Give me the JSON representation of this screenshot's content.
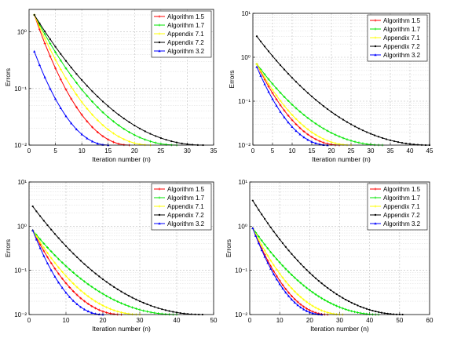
{
  "colors": {
    "Algorithm 1.5": "#ff0000",
    "Algorithm 1.7": "#00e600",
    "Appendix 7.1": "#ffff00",
    "Appendix 7.2": "#000000",
    "Algorithm 3.2": "#0000ff"
  },
  "chart_data": [
    {
      "type": "line",
      "xlabel": "Iteration number (n)",
      "ylabel": "Errors",
      "xlim": [
        0,
        35
      ],
      "xticks": [
        0,
        5,
        10,
        15,
        20,
        25,
        30,
        35
      ],
      "yscale": "log",
      "ylim": [
        0.01,
        2.5
      ],
      "yticks": [
        0.01,
        0.1,
        1
      ],
      "ytick_labels": [
        "10⁻²",
        "10⁻¹",
        "10⁰"
      ],
      "grid": true,
      "legend": "top-right",
      "series": [
        {
          "name": "Algorithm 1.5",
          "y0": 2.0,
          "n_end": 19
        },
        {
          "name": "Algorithm 1.7",
          "y0": 2.0,
          "n_end": 28
        },
        {
          "name": "Appendix 7.1",
          "y0": 2.0,
          "n_end": 23
        },
        {
          "name": "Appendix 7.2",
          "y0": 2.0,
          "n_end": 33
        },
        {
          "name": "Algorithm 3.2",
          "y0": 0.45,
          "n_end": 15
        }
      ]
    },
    {
      "type": "line",
      "xlabel": "Iteration number (n)",
      "ylabel": "Errors",
      "xlim": [
        0,
        45
      ],
      "xticks": [
        0,
        5,
        10,
        15,
        20,
        25,
        30,
        35,
        40,
        45
      ],
      "yscale": "log",
      "ylim": [
        0.01,
        10
      ],
      "yticks": [
        0.01,
        0.1,
        1,
        10
      ],
      "ytick_labels": [
        "10⁻²",
        "10⁻¹",
        "10⁰",
        "10¹"
      ],
      "grid": true,
      "legend": "top-right",
      "series": [
        {
          "name": "Algorithm 1.5",
          "y0": 0.7,
          "n_end": 22
        },
        {
          "name": "Algorithm 1.7",
          "y0": 0.7,
          "n_end": 33
        },
        {
          "name": "Appendix 7.1",
          "y0": 0.7,
          "n_end": 25
        },
        {
          "name": "Appendix 7.2",
          "y0": 3.0,
          "n_end": 45
        },
        {
          "name": "Algorithm 3.2",
          "y0": 0.6,
          "n_end": 19
        }
      ]
    },
    {
      "type": "line",
      "xlabel": "Iteration number (n)",
      "ylabel": "Errors",
      "xlim": [
        0,
        50
      ],
      "xticks": [
        0,
        10,
        20,
        30,
        40,
        50
      ],
      "yscale": "log",
      "ylim": [
        0.01,
        10
      ],
      "yticks": [
        0.01,
        0.1,
        1,
        10
      ],
      "ytick_labels": [
        "10⁻²",
        "10⁻¹",
        "10⁰",
        "10¹"
      ],
      "grid": true,
      "legend": "top-right",
      "series": [
        {
          "name": "Algorithm 1.5",
          "y0": 0.8,
          "n_end": 25
        },
        {
          "name": "Algorithm 1.7",
          "y0": 0.8,
          "n_end": 40
        },
        {
          "name": "Appendix 7.1",
          "y0": 0.8,
          "n_end": 30
        },
        {
          "name": "Appendix 7.2",
          "y0": 2.8,
          "n_end": 47
        },
        {
          "name": "Algorithm 3.2",
          "y0": 0.8,
          "n_end": 20
        }
      ]
    },
    {
      "type": "line",
      "xlabel": "Iteration number (n)",
      "ylabel": "Errors",
      "xlim": [
        0,
        60
      ],
      "xticks": [
        0,
        10,
        20,
        30,
        40,
        50,
        60
      ],
      "yscale": "log",
      "ylim": [
        0.01,
        10
      ],
      "yticks": [
        0.01,
        0.1,
        1,
        10
      ],
      "ytick_labels": [
        "10⁻²",
        "10⁻¹",
        "10⁰",
        "10¹"
      ],
      "grid": true,
      "legend": "top-right",
      "series": [
        {
          "name": "Algorithm 1.5",
          "y0": 0.9,
          "n_end": 26
        },
        {
          "name": "Algorithm 1.7",
          "y0": 0.9,
          "n_end": 43
        },
        {
          "name": "Appendix 7.1",
          "y0": 0.9,
          "n_end": 31
        },
        {
          "name": "Appendix 7.2",
          "y0": 3.8,
          "n_end": 51
        },
        {
          "name": "Algorithm 3.2",
          "y0": 0.9,
          "n_end": 24
        }
      ]
    }
  ]
}
